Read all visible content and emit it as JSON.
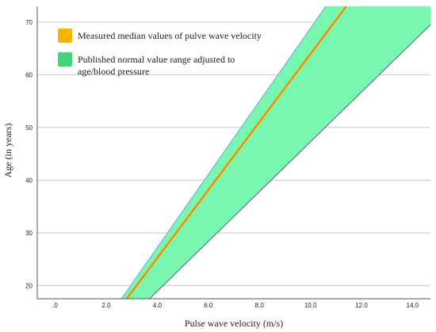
{
  "chart_data": {
    "type": "area",
    "xlabel": "Pulse wave velocity (m/s)",
    "ylabel": "Age (in years)",
    "xlim": [
      -0.7,
      14.7
    ],
    "ylim": [
      17.5,
      73
    ],
    "x_ticks": [
      ".0",
      "2.0",
      "4.0",
      "6.0",
      "8.0",
      "10.0",
      "12.0",
      "14.0"
    ],
    "x_tick_values": [
      0,
      2,
      4,
      6,
      8,
      10,
      12,
      14
    ],
    "y_ticks": [
      "20",
      "30",
      "40",
      "50",
      "60",
      "70"
    ],
    "y_tick_values": [
      20,
      30,
      40,
      50,
      60,
      70
    ],
    "grid": "horizontal",
    "legend_position": "top-left",
    "series": [
      {
        "name": "Measured median values of pulve wave velocity",
        "type": "line",
        "color": "#f5b400",
        "x": [
          2.8,
          11.4
        ],
        "y": [
          17.5,
          73
        ]
      },
      {
        "name": "Published normal value range adjusted to age/blood pressure",
        "type": "band",
        "color": "#3fd67a",
        "fill": "#78f7ae",
        "lower": {
          "x": [
            3.7,
            14.7
          ],
          "y": [
            17.5,
            69.5
          ]
        },
        "upper": {
          "x": [
            2.6,
            10.6
          ],
          "y": [
            17.5,
            73
          ]
        }
      }
    ]
  }
}
